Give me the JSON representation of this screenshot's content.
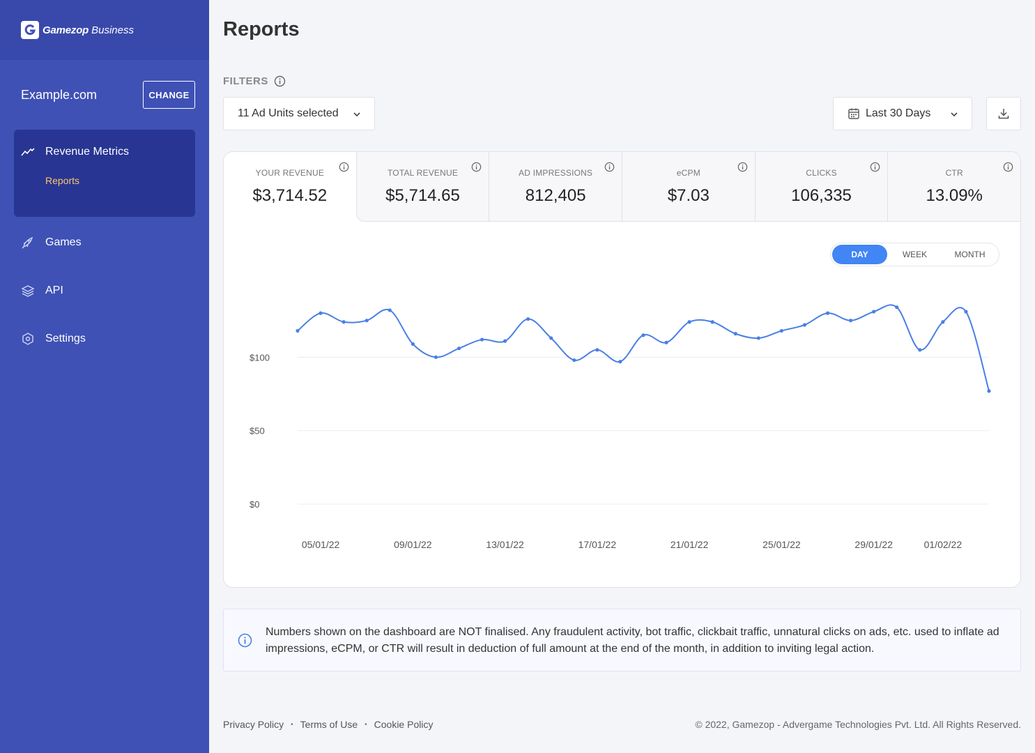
{
  "sidebar": {
    "brand_name": "Gamezop",
    "brand_sub": "Business",
    "site_name": "Example.com",
    "change_label": "CHANGE",
    "nav": [
      {
        "label": "Revenue Metrics",
        "icon": "trend-icon"
      },
      {
        "label": "Games",
        "icon": "rocket-icon"
      },
      {
        "label": "API",
        "icon": "layers-icon"
      },
      {
        "label": "Settings",
        "icon": "hexagon-settings-icon"
      }
    ],
    "sub_item": "Reports"
  },
  "header": {
    "title": "Reports"
  },
  "filters": {
    "label": "FILTERS",
    "ad_units": "11 Ad Units selected",
    "date_range": "Last 30 Days"
  },
  "metrics": [
    {
      "label": "YOUR REVENUE",
      "value": "$3,714.52"
    },
    {
      "label": "TOTAL REVENUE",
      "value": "$5,714.65"
    },
    {
      "label": "AD IMPRESSIONS",
      "value": "812,405"
    },
    {
      "label": "eCPM",
      "value": "$7.03"
    },
    {
      "label": "CLICKS",
      "value": "106,335"
    },
    {
      "label": "CTR",
      "value": "13.09%"
    }
  ],
  "granularity": {
    "day": "DAY",
    "week": "WEEK",
    "month": "MONTH",
    "selected": "DAY"
  },
  "chart_data": {
    "type": "line",
    "title": "",
    "xlabel": "",
    "ylabel": "",
    "x_tick_labels": [
      "05/01/22",
      "09/01/22",
      "13/01/22",
      "17/01/22",
      "21/01/22",
      "25/01/22",
      "29/01/22",
      "01/02/22"
    ],
    "y_tick_labels": [
      "$0",
      "$50",
      "$100"
    ],
    "y_ticks": [
      0,
      50,
      100
    ],
    "ylim": [
      0,
      150
    ],
    "grid": true,
    "series": [
      {
        "color": "#4a7fe6",
        "x": [
          "04/01/22",
          "05/01/22",
          "06/01/22",
          "07/01/22",
          "08/01/22",
          "09/01/22",
          "10/01/22",
          "11/01/22",
          "12/01/22",
          "13/01/22",
          "14/01/22",
          "15/01/22",
          "16/01/22",
          "17/01/22",
          "18/01/22",
          "19/01/22",
          "20/01/22",
          "21/01/22",
          "22/01/22",
          "23/01/22",
          "24/01/22",
          "25/01/22",
          "26/01/22",
          "27/01/22",
          "28/01/22",
          "29/01/22",
          "30/01/22",
          "31/01/22",
          "01/02/22",
          "02/02/22",
          "03/02/22"
        ],
        "values": [
          118,
          130,
          124,
          125,
          132,
          109,
          100,
          106,
          112,
          111,
          126,
          113,
          98,
          105,
          97,
          115,
          110,
          124,
          124,
          116,
          113,
          118,
          122,
          130,
          125,
          131,
          134,
          105,
          124,
          131,
          77
        ]
      }
    ]
  },
  "notice": "Numbers shown on the dashboard are NOT finalised. Any fraudulent activity, bot traffic, clickbait traffic, unnatural clicks on ads, etc. used to inflate ad impressions, eCPM, or CTR will result in deduction of full amount at the end of the month, in addition to inviting legal action.",
  "footer": {
    "links": [
      "Privacy Policy",
      "Terms of Use",
      "Cookie Policy"
    ],
    "copyright": "© 2022, Gamezop - Advergame Technologies Pvt. Ltd. All Rights Reserved."
  }
}
